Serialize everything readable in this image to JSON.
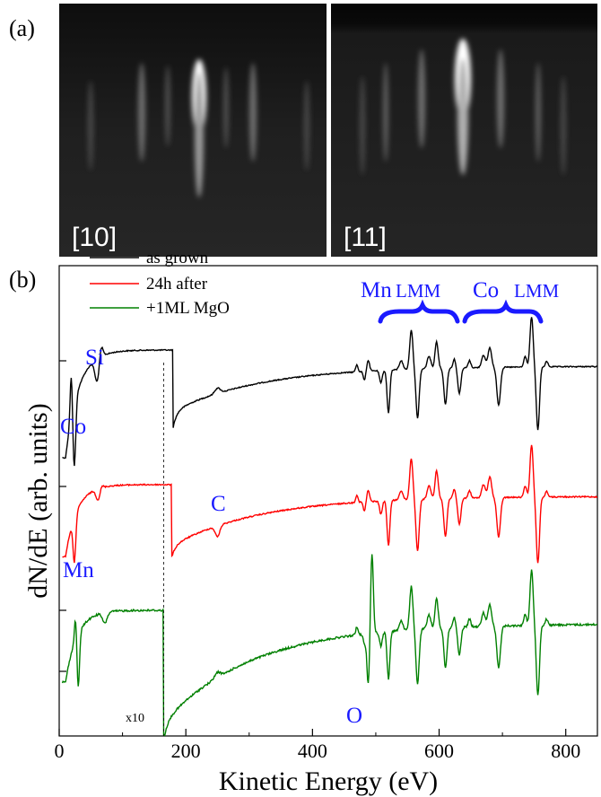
{
  "panel_a": {
    "label": "(a)",
    "images": [
      {
        "label": "[10]"
      },
      {
        "label": "[11]"
      }
    ]
  },
  "panel_b": {
    "label": "(b)"
  },
  "chart_data": {
    "type": "line",
    "xlabel": "Kinetic Energy (eV)",
    "ylabel": "dN/dE (arb. units)",
    "xlim": [
      0,
      850
    ],
    "xticks": [
      0,
      200,
      400,
      600,
      800
    ],
    "xtick_labels": [
      "0",
      "200",
      "400",
      "600",
      "800"
    ],
    "yticks_labels": [],
    "legend": {
      "placement": "top-left"
    },
    "series": [
      {
        "name": "as grown",
        "color": "#000000"
      },
      {
        "name": "24h after",
        "color": "#ff0000"
      },
      {
        "name": "+1ML MgO",
        "color": "#008000"
      }
    ],
    "annotations": {
      "elements": [
        "Si",
        "Co",
        "C",
        "Mn",
        "O"
      ],
      "groups": [
        {
          "element": "Mn",
          "transition": "LMM"
        },
        {
          "element": "Co",
          "transition": "LMM"
        }
      ],
      "scale_note": "x10",
      "scale_note_x": 165
    }
  },
  "colors": {
    "label_blue": "#1a1aff",
    "background": "#ffffff"
  }
}
